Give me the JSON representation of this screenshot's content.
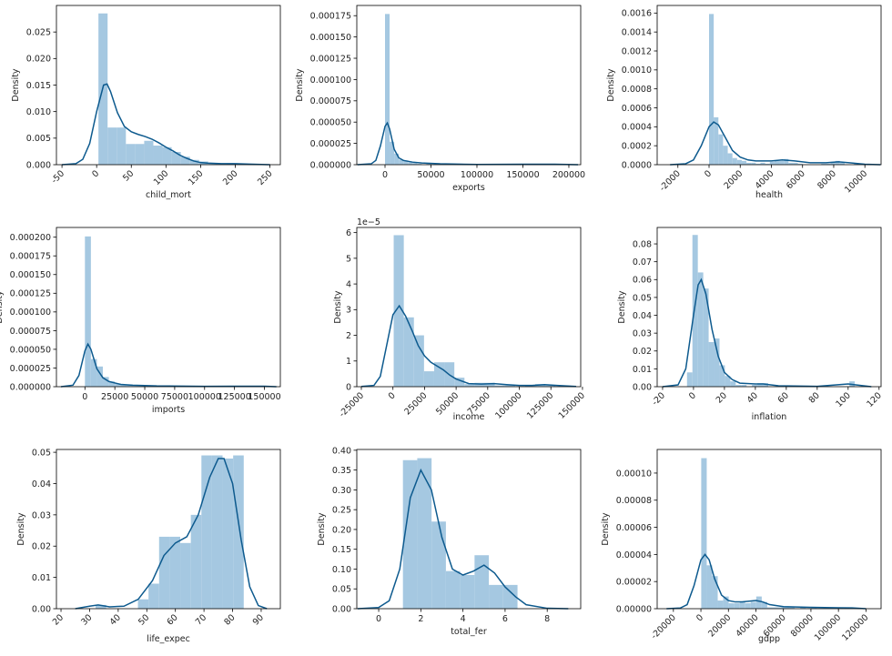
{
  "chart_data": [
    {
      "type": "histogram",
      "xlabel": "child_mort",
      "ylabel": "Density",
      "color": "#a5c8e1",
      "bins": [
        2.6,
        15.8,
        29,
        42.2,
        55.4,
        68.6,
        81.8,
        95,
        108.2,
        121.4,
        134.6,
        147.8,
        161,
        174.2,
        187.4,
        200.6,
        213.8
      ],
      "values": [
        0.0285,
        0.007,
        0.007,
        0.0039,
        0.0039,
        0.0045,
        0.0036,
        0.0033,
        0.0024,
        0.0015,
        0.0009,
        0.0006,
        0.0002,
        0,
        0.0002,
        0.0002
      ],
      "kde": {
        "color": "#0d5a8e",
        "x": [
          -50,
          -30,
          -20,
          -10,
          0,
          10,
          15,
          20,
          30,
          40,
          50,
          60,
          70,
          80,
          90,
          100,
          110,
          120,
          130,
          140,
          150,
          160,
          180,
          200,
          220,
          250
        ],
        "values": [
          0,
          0.0002,
          0.001,
          0.004,
          0.01,
          0.015,
          0.0152,
          0.0138,
          0.0098,
          0.0072,
          0.0062,
          0.0057,
          0.0053,
          0.0048,
          0.0041,
          0.0033,
          0.0026,
          0.0018,
          0.0012,
          0.0007,
          0.0004,
          0.0003,
          0.0002,
          0.0002,
          0.0001,
          0
        ]
      },
      "xlim": [
        -58,
        265
      ],
      "ylim": [
        0,
        0.03
      ],
      "rotate_xticks": true,
      "xticks": [
        -50,
        0,
        50,
        100,
        150,
        200,
        250
      ],
      "yticks": [
        {
          "value": 0,
          "label": "0.000"
        },
        0.005,
        {
          "value": 0.01,
          "label": "0.010"
        },
        0.015,
        {
          "value": 0.02,
          "label": "0.020"
        },
        0.025
      ]
    },
    {
      "type": "histogram",
      "xlabel": "exports",
      "ylabel": "Density",
      "color": "#a5c8e1",
      "bins": [
        0,
        5000,
        10000,
        15000,
        20000,
        25000,
        30000,
        35000,
        40000,
        45000,
        50000,
        55000,
        60000,
        65000,
        70000,
        75000,
        80000,
        85000,
        90000,
        95000,
        100000,
        105000,
        110000,
        115000,
        120000,
        125000,
        130000,
        135000,
        140000,
        145000,
        150000,
        155000,
        160000,
        165000,
        170000,
        175000,
        180000,
        185000,
        190000
      ],
      "values": [
        0.000177,
        2.7e-05,
        1.3e-05,
        6e-06,
        5e-06,
        3e-06,
        2e-06,
        1e-06,
        0,
        1e-06,
        0,
        0,
        0,
        0,
        0,
        0,
        0,
        0,
        0,
        0,
        0,
        0,
        0,
        0,
        0,
        0,
        0,
        0,
        0,
        0,
        0,
        0,
        0,
        0,
        0,
        0,
        0,
        1e-06
      ],
      "kde": {
        "color": "#0d5a8e",
        "x": [
          -30000,
          -15000,
          -10000,
          -5000,
          0,
          2500,
          5000,
          10000,
          15000,
          20000,
          30000,
          40000,
          60000,
          100000,
          150000,
          185000,
          210000
        ],
        "values": [
          0,
          1e-06,
          5e-06,
          2.2e-05,
          4.5e-05,
          4.9e-05,
          4.2e-05,
          1.8e-05,
          8e-06,
          5e-06,
          3e-06,
          2e-06,
          1e-06,
          3e-07,
          5e-07,
          6e-07,
          0
        ]
      },
      "xlim": [
        -30700,
        212900
      ],
      "ylim": [
        0,
        0.000187
      ],
      "rotate_xticks": false,
      "xticks": [
        0,
        50000,
        100000,
        150000,
        200000
      ],
      "yticks": [
        {
          "value": 0,
          "label": "0.000000"
        },
        2.5e-05,
        {
          "value": 5e-05,
          "label": "0.000050"
        },
        7.5e-05,
        {
          "value": 0.0001,
          "label": "0.000100"
        },
        0.000125,
        {
          "value": 0.00015,
          "label": "0.000150"
        },
        0.000175
      ]
    },
    {
      "type": "histogram",
      "xlabel": "health",
      "ylabel": "Density",
      "color": "#a5c8e1",
      "bins": [
        0,
        300,
        600,
        900,
        1200,
        1500,
        1800,
        2100,
        2400,
        2700,
        3000,
        3300,
        3600,
        3900,
        4200,
        4500,
        4800,
        5100,
        5400,
        5700,
        6000,
        6300,
        6600,
        6900,
        7200,
        7500,
        7800,
        8100,
        8400,
        8700,
        9000,
        9300,
        9600
      ],
      "values": [
        0.00159,
        0.0005,
        0.00032,
        0.0002,
        0.00012,
        7e-05,
        5e-05,
        4e-05,
        2e-05,
        2e-05,
        1e-05,
        2e-05,
        1e-05,
        3e-05,
        4e-05,
        4e-05,
        6e-05,
        2e-05,
        2e-05,
        1e-05,
        0,
        0,
        0,
        0,
        1e-05,
        1e-05,
        3e-05,
        4e-05,
        2e-05,
        0,
        0,
        1e-05
      ],
      "kde": {
        "color": "#0d5a8e",
        "x": [
          -2500,
          -1500,
          -1000,
          -500,
          0,
          300,
          600,
          1000,
          1500,
          2000,
          2500,
          3000,
          4000,
          4700,
          5500,
          6500,
          7500,
          8300,
          9000,
          10000,
          11000
        ],
        "values": [
          0,
          1e-05,
          5e-05,
          0.0002,
          0.0004,
          0.00045,
          0.00042,
          0.0003,
          0.00015,
          8e-05,
          5e-05,
          4e-05,
          4e-05,
          5e-05,
          4e-05,
          2e-05,
          2e-05,
          3e-05,
          2e-05,
          5e-06,
          0
        ]
      },
      "xlim": [
        -3330,
        11040
      ],
      "ylim": [
        0,
        0.00168
      ],
      "rotate_xticks": true,
      "xticks": [
        -2000,
        0,
        2000,
        4000,
        6000,
        8000,
        10000
      ],
      "yticks": [
        {
          "value": 0,
          "label": "0.0000"
        },
        0.0002,
        0.0004,
        0.0006,
        0.0008,
        {
          "value": 0.001,
          "label": "0.0010"
        },
        0.0012,
        0.0014,
        0.0016
      ]
    },
    {
      "type": "histogram",
      "xlabel": "imports",
      "ylabel": "Density",
      "color": "#a5c8e1",
      "bins": [
        0,
        5000,
        10000,
        15000,
        20000,
        25000,
        30000,
        35000,
        40000,
        45000,
        50000,
        55000,
        60000,
        65000,
        70000,
        75000,
        80000,
        85000,
        90000,
        95000,
        100000,
        105000,
        110000,
        115000,
        120000,
        125000,
        130000,
        135000,
        140000,
        145000,
        150000,
        155000
      ],
      "values": [
        0.000201,
        3.7e-05,
        2.7e-05,
        1.3e-05,
        7e-06,
        4e-06,
        3e-06,
        2e-06,
        1e-06,
        1e-06,
        0,
        0,
        0,
        0,
        1e-06,
        0,
        0,
        0,
        0,
        1e-06,
        0,
        0,
        0,
        0,
        0,
        0,
        0,
        0,
        0,
        0,
        1e-06
      ],
      "kde": {
        "color": "#0d5a8e",
        "x": [
          -20000,
          -10000,
          -5000,
          0,
          2500,
          5000,
          10000,
          15000,
          20000,
          30000,
          40000,
          60000,
          80000,
          100000,
          150000,
          160000
        ],
        "values": [
          0,
          2e-06,
          1.5e-05,
          4.8e-05,
          5.7e-05,
          5e-05,
          2.4e-05,
          1.2e-05,
          7e-06,
          3e-06,
          2e-06,
          1e-06,
          8e-07,
          5e-07,
          6e-07,
          0
        ]
      },
      "xlim": [
        -23800,
        163300
      ],
      "ylim": [
        0,
        0.000213
      ],
      "rotate_xticks": false,
      "xticks": [
        0,
        25000,
        50000,
        75000,
        100000,
        125000,
        150000
      ],
      "yticks": [
        {
          "value": 0,
          "label": "0.000000"
        },
        2.5e-05,
        {
          "value": 5e-05,
          "label": "0.000050"
        },
        7.5e-05,
        {
          "value": 0.0001,
          "label": "0.000100"
        },
        0.000125,
        {
          "value": 0.00015,
          "label": "0.000150"
        },
        0.000175,
        {
          "value": 0.0002,
          "label": "0.000200"
        }
      ]
    },
    {
      "type": "histogram",
      "xlabel": "income",
      "ylabel": "Density",
      "y_offset_label": "1e−5",
      "color": "#a5c8e1",
      "bins": [
        600,
        8600,
        16600,
        24600,
        32600,
        40600,
        48600,
        56600,
        64600,
        72600,
        80600,
        88600,
        96600,
        104600,
        112600,
        120600,
        128600
      ],
      "values": [
        5.9,
        2.7,
        2.0,
        0.6,
        0.95,
        0.95,
        0.35,
        0.1,
        0.15,
        0.15,
        0.05,
        0.05,
        0,
        0.05,
        0.1,
        0.05
      ],
      "kde": {
        "color": "#0d5a8e",
        "x": [
          -25000,
          -15000,
          -10000,
          -5000,
          0,
          5000,
          10000,
          15000,
          20000,
          25000,
          30000,
          35000,
          40000,
          45000,
          50000,
          60000,
          70000,
          80000,
          90000,
          100000,
          110000,
          120000,
          130000,
          145000
        ],
        "values": [
          0.01,
          0.05,
          0.4,
          1.6,
          2.8,
          3.15,
          2.75,
          2.2,
          1.6,
          1.2,
          0.95,
          0.8,
          0.65,
          0.45,
          0.3,
          0.12,
          0.1,
          0.12,
          0.08,
          0.05,
          0.05,
          0.08,
          0.05,
          0.01
        ]
      },
      "xlim": [
        -28600,
        148600
      ],
      "ylim": [
        0,
        6.2
      ],
      "rotate_xticks": true,
      "xticks": [
        -25000,
        0,
        25000,
        50000,
        75000,
        100000,
        125000,
        150000
      ],
      "yticks": [
        0,
        1,
        2,
        3,
        4,
        5,
        6
      ]
    },
    {
      "type": "histogram",
      "xlabel": "inflation",
      "ylabel": "Density",
      "color": "#a5c8e1",
      "bins": [
        -4.2,
        -0.7,
        2.8,
        6.3,
        9.8,
        13.3,
        16.8,
        20.3,
        23.8,
        27.3,
        30.8,
        34.3,
        37.8,
        41.3,
        44.8,
        48.3,
        51.8,
        55.3,
        58.8,
        62.3,
        65.8,
        69.3,
        72.8,
        76.3,
        79.8,
        83.3,
        86.8,
        90.3,
        93.8,
        97.3,
        100.8,
        104.3
      ],
      "values": [
        0.008,
        0.085,
        0.064,
        0.055,
        0.025,
        0.027,
        0.012,
        0.006,
        0.003,
        0.001,
        0.001,
        0,
        0.001,
        0.002,
        0.002,
        0,
        0,
        0,
        0,
        0,
        0,
        0,
        0,
        0,
        0,
        0,
        0,
        0,
        0,
        0,
        0.003
      ],
      "kde": {
        "color": "#0d5a8e",
        "x": [
          -20,
          -10,
          -5,
          0,
          3,
          5,
          8,
          12,
          16,
          20,
          25,
          30,
          40,
          45,
          55,
          80,
          100,
          105,
          115
        ],
        "values": [
          0,
          0.001,
          0.01,
          0.04,
          0.057,
          0.06,
          0.052,
          0.032,
          0.017,
          0.008,
          0.004,
          0.002,
          0.0015,
          0.0015,
          0.0005,
          0.0002,
          0.0015,
          0.001,
          0
        ]
      },
      "xlim": [
        -23.5,
        121.3
      ],
      "ylim": [
        0,
        0.0892
      ],
      "rotate_xticks": true,
      "xticks": [
        -20,
        0,
        20,
        40,
        60,
        80,
        100,
        120
      ],
      "yticks": [
        {
          "value": 0,
          "label": "0.00"
        },
        0.01,
        0.02,
        0.03,
        0.04,
        0.05,
        0.06,
        0.07,
        0.08
      ]
    },
    {
      "type": "histogram",
      "xlabel": "life_expec",
      "ylabel": "Density",
      "color": "#a5c8e1",
      "bins": [
        32.1,
        35.8,
        39.5,
        43.2,
        46.9,
        50.6,
        54.3,
        58,
        61.7,
        65.4,
        69.1,
        72.8,
        76.5,
        80.2,
        83.9
      ],
      "values": [
        0.0012,
        0,
        0,
        0,
        0.003,
        0.008,
        0.023,
        0.023,
        0.021,
        0.03,
        0.049,
        0.049,
        0.048,
        0.049
      ],
      "kde": {
        "color": "#0d5a8e",
        "x": [
          25,
          30,
          33,
          37,
          42,
          47,
          52,
          56,
          60,
          64,
          68,
          72,
          75,
          77,
          80,
          83,
          86,
          89,
          92
        ],
        "values": [
          0,
          0.0008,
          0.0012,
          0.0006,
          0.0008,
          0.003,
          0.009,
          0.017,
          0.021,
          0.023,
          0.03,
          0.042,
          0.048,
          0.048,
          0.04,
          0.022,
          0.007,
          0.001,
          0
        ]
      },
      "xlim": [
        18.4,
        96.7
      ],
      "ylim": [
        0,
        0.0509
      ],
      "rotate_xticks": true,
      "xticks": [
        20,
        30,
        40,
        50,
        60,
        70,
        80,
        90
      ],
      "yticks": [
        {
          "value": 0,
          "label": "0.00"
        },
        0.01,
        0.02,
        0.03,
        0.04,
        0.05
      ]
    },
    {
      "type": "histogram",
      "xlabel": "total_fer",
      "ylabel": "Density",
      "color": "#a5c8e1",
      "bins": [
        1.15,
        1.83,
        2.51,
        3.19,
        3.87,
        4.55,
        5.23,
        5.91,
        6.59
      ],
      "values": [
        0.375,
        0.38,
        0.22,
        0.095,
        0.085,
        0.135,
        0.06,
        0.06
      ],
      "kde": {
        "color": "#0d5a8e",
        "x": [
          -1,
          0,
          0.5,
          1,
          1.5,
          2,
          2.5,
          3,
          3.5,
          4,
          4.5,
          5,
          5.5,
          6,
          6.5,
          7,
          8,
          9
        ],
        "values": [
          0,
          0.003,
          0.02,
          0.1,
          0.28,
          0.35,
          0.3,
          0.18,
          0.1,
          0.085,
          0.095,
          0.11,
          0.09,
          0.055,
          0.03,
          0.01,
          0.001,
          0
        ]
      },
      "xlim": [
        -1.04,
        9.59
      ],
      "ylim": [
        0,
        0.402
      ],
      "rotate_xticks": false,
      "xticks": [
        0,
        2,
        4,
        6,
        8
      ],
      "yticks": [
        {
          "value": 0,
          "label": "0.00"
        },
        0.05,
        {
          "value": 0.1,
          "label": "0.10"
        },
        0.15,
        {
          "value": 0.2,
          "label": "0.20"
        },
        0.25,
        {
          "value": 0.3,
          "label": "0.30"
        },
        0.35,
        {
          "value": 0.4,
          "label": "0.40"
        }
      ]
    },
    {
      "type": "histogram",
      "xlabel": "gdpp",
      "ylabel": "Density",
      "color": "#a5c8e1",
      "bins": [
        231,
        4231,
        8231,
        12231,
        16231,
        20231,
        24231,
        28231,
        32231,
        36231,
        40231,
        44231,
        48231,
        52231,
        56231,
        60231,
        64231,
        68231,
        72231,
        76231,
        80231,
        84231,
        88231,
        92231,
        96231,
        100231,
        104231,
        108231
      ],
      "values": [
        0.000111,
        3.2e-05,
        2.4e-05,
        6e-06,
        9e-06,
        4e-06,
        4e-06,
        5e-06,
        4e-06,
        5e-06,
        9e-06,
        5e-06,
        1e-06,
        1e-06,
        1e-06,
        1e-06,
        1e-06,
        0,
        1e-06,
        0,
        1e-06,
        0,
        0,
        0,
        0,
        0,
        1e-06
      ],
      "kde": {
        "color": "#0d5a8e",
        "x": [
          -25000,
          -15000,
          -10000,
          -5000,
          0,
          3000,
          6000,
          10000,
          15000,
          20000,
          25000,
          30000,
          40000,
          45000,
          50000,
          60000,
          80000,
          100000,
          110000,
          120000
        ],
        "values": [
          0,
          5e-07,
          3e-06,
          1.7e-05,
          3.6e-05,
          4e-05,
          3.6e-05,
          2.2e-05,
          1e-05,
          6e-06,
          5e-06,
          5e-06,
          6e-06,
          5e-06,
          3e-06,
          1.5e-06,
          1e-06,
          7e-07,
          6e-07,
          0
        ]
      },
      "xlim": [
        -31800,
        131000
      ],
      "ylim": [
        0,
        0.0001174
      ],
      "rotate_xticks": true,
      "xticks": [
        -20000,
        0,
        20000,
        40000,
        60000,
        80000,
        100000,
        120000
      ],
      "yticks": [
        {
          "value": 0,
          "label": "0.00000"
        },
        2e-05,
        4e-05,
        6e-05,
        8e-05,
        {
          "value": 0.0001,
          "label": "0.00010"
        }
      ]
    }
  ]
}
